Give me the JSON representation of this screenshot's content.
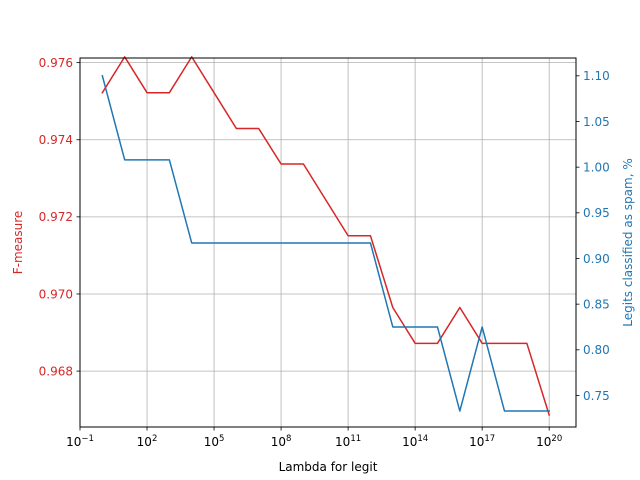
{
  "chart_data": {
    "type": "line",
    "title": "",
    "xlabel": "Lambda for legit",
    "ylabel_left": "F-measure",
    "ylabel_right": "Legits classified as spam, %",
    "x_scale": "log",
    "xlim_exponent": [
      -1,
      21.2
    ],
    "x_ticks": [
      {
        "exp": -1,
        "base": "10",
        "sup": "−1"
      },
      {
        "exp": 2,
        "base": "10",
        "sup": "2"
      },
      {
        "exp": 5,
        "base": "10",
        "sup": "5"
      },
      {
        "exp": 8,
        "base": "10",
        "sup": "8"
      },
      {
        "exp": 11,
        "base": "10",
        "sup": "11"
      },
      {
        "exp": 14,
        "base": "10",
        "sup": "14"
      },
      {
        "exp": 17,
        "base": "10",
        "sup": "17"
      },
      {
        "exp": 20,
        "base": "10",
        "sup": "20"
      }
    ],
    "ylim_left": [
      0.96655,
      0.97612
    ],
    "yticks_left": [
      {
        "value": 0.968,
        "label": "0.968"
      },
      {
        "value": 0.97,
        "label": "0.970"
      },
      {
        "value": 0.972,
        "label": "0.972"
      },
      {
        "value": 0.974,
        "label": "0.974"
      },
      {
        "value": 0.976,
        "label": "0.976"
      }
    ],
    "ylim_right": [
      0.7155,
      1.1195
    ],
    "yticks_right": [
      {
        "value": 0.75,
        "label": "0.75"
      },
      {
        "value": 0.8,
        "label": "0.80"
      },
      {
        "value": 0.85,
        "label": "0.85"
      },
      {
        "value": 0.9,
        "label": "0.90"
      },
      {
        "value": 0.95,
        "label": "0.95"
      },
      {
        "value": 1.0,
        "label": "1.00"
      },
      {
        "value": 1.05,
        "label": "1.05"
      },
      {
        "value": 1.1,
        "label": "1.10"
      }
    ],
    "grid": true,
    "colors": {
      "left": "#d62728",
      "right": "#1f77b4"
    },
    "x_exponents": [
      0,
      1,
      2,
      3,
      4,
      5,
      6,
      7,
      8,
      9,
      10,
      11,
      12,
      13,
      14,
      15,
      16,
      17,
      18,
      19,
      20
    ],
    "series": [
      {
        "axis": "left",
        "values": [
          0.97522,
          0.97615,
          0.97522,
          0.97522,
          0.97615,
          0.97522,
          0.97429,
          0.97429,
          0.97337,
          0.97337,
          0.97244,
          0.97151,
          0.97151,
          0.96965,
          0.96872,
          0.96872,
          0.96965,
          0.96872,
          0.96872,
          0.96872,
          0.96686
        ]
      },
      {
        "axis": "right",
        "values": [
          1.1,
          1.008,
          1.008,
          1.008,
          0.917,
          0.917,
          0.917,
          0.917,
          0.917,
          0.917,
          0.917,
          0.917,
          0.917,
          0.825,
          0.825,
          0.825,
          0.733,
          0.825,
          0.733,
          0.733,
          0.733
        ]
      }
    ]
  }
}
